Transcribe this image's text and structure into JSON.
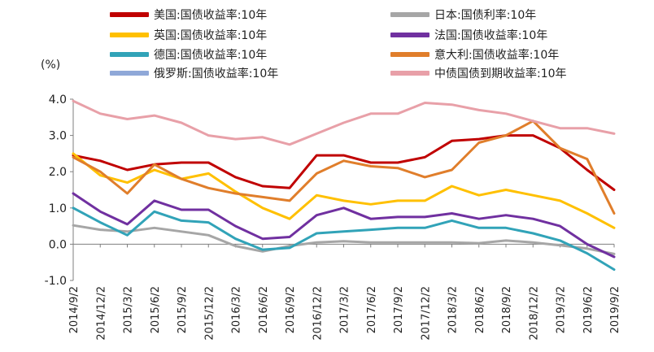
{
  "chart_data": {
    "type": "line",
    "ylabel": "(%)",
    "ylim": [
      -1.0,
      4.0
    ],
    "y_ticks": [
      "4.0",
      "3.0",
      "2.0",
      "1.0",
      "0.0",
      "-1.0"
    ],
    "x_ticks": [
      "2014/9/2",
      "2014/12/2",
      "2015/3/2",
      "2015/6/2",
      "2015/9/2",
      "2015/12/2",
      "2016/3/2",
      "2016/6/2",
      "2016/9/2",
      "2016/12/2",
      "2017/3/2",
      "2017/6/2",
      "2017/9/2",
      "2017/12/2",
      "2018/3/2",
      "2018/6/2",
      "2018/9/2",
      "2018/12/2",
      "2019/3/2",
      "2019/6/2",
      "2019/9/2"
    ],
    "legend_placement": "top",
    "grid": false,
    "series": [
      {
        "name": "美国:国债收益率:10年",
        "color": "#c00000",
        "values": [
          2.45,
          2.3,
          2.05,
          2.2,
          2.25,
          2.25,
          1.85,
          1.6,
          1.55,
          2.45,
          2.45,
          2.25,
          2.25,
          2.4,
          2.85,
          2.9,
          3.0,
          3.0,
          2.65,
          2.05,
          1.5
        ]
      },
      {
        "name": "日本:国债利率:10年",
        "color": "#a6a6a6",
        "values": [
          0.52,
          0.4,
          0.35,
          0.45,
          0.35,
          0.25,
          -0.05,
          -0.2,
          -0.05,
          0.05,
          0.08,
          0.05,
          0.05,
          0.05,
          0.05,
          0.03,
          0.1,
          0.05,
          -0.03,
          -0.12,
          -0.27
        ]
      },
      {
        "name": "英国:国债收益率:10年",
        "color": "#ffc000",
        "values": [
          2.5,
          1.9,
          1.7,
          2.05,
          1.8,
          1.95,
          1.45,
          1.0,
          0.7,
          1.35,
          1.2,
          1.1,
          1.2,
          1.2,
          1.6,
          1.35,
          1.5,
          1.35,
          1.2,
          0.85,
          0.45
        ]
      },
      {
        "name": "法国:国债收益率:10年",
        "color": "#7030a0",
        "values": [
          1.4,
          0.9,
          0.55,
          1.2,
          0.95,
          0.95,
          0.5,
          0.15,
          0.2,
          0.8,
          1.0,
          0.7,
          0.75,
          0.75,
          0.85,
          0.7,
          0.8,
          0.7,
          0.5,
          0.0,
          -0.35
        ]
      },
      {
        "name": "德国:国债收益率:10年",
        "color": "#31a3b8",
        "values": [
          1.0,
          0.6,
          0.25,
          0.9,
          0.65,
          0.6,
          0.15,
          -0.15,
          -0.1,
          0.3,
          0.35,
          0.4,
          0.45,
          0.45,
          0.65,
          0.45,
          0.45,
          0.3,
          0.1,
          -0.25,
          -0.7
        ]
      },
      {
        "name": "意大利:国债收益率:10年",
        "color": "#e07e2b",
        "values": [
          2.4,
          2.0,
          1.4,
          2.2,
          1.8,
          1.55,
          1.4,
          1.3,
          1.2,
          1.95,
          2.3,
          2.15,
          2.1,
          1.85,
          2.05,
          2.8,
          3.0,
          3.4,
          2.65,
          2.35,
          0.85
        ]
      },
      {
        "name": "俄罗斯:国债收益率:10年",
        "color": "#8fa8d8",
        "values": []
      },
      {
        "name": "中债国债到期收益率:10年",
        "color": "#e8a0a8",
        "values": [
          3.95,
          3.6,
          3.45,
          3.55,
          3.35,
          3.0,
          2.9,
          2.95,
          2.75,
          3.05,
          3.35,
          3.6,
          3.6,
          3.9,
          3.85,
          3.7,
          3.6,
          3.4,
          3.2,
          3.2,
          3.05
        ]
      }
    ]
  }
}
